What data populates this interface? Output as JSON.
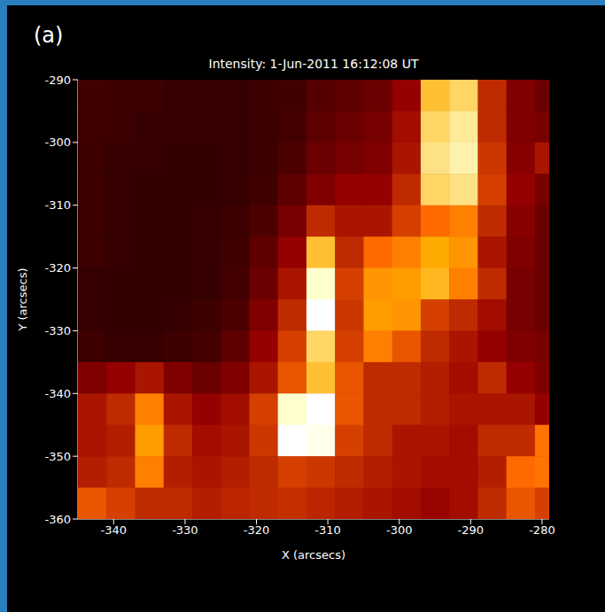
{
  "chart_data": {
    "type": "heatmap",
    "panel": "(a)",
    "title": "Intensity: 1-Jun-2011 16:12:08 UT",
    "x_label": "X (arcsecs)",
    "y_label": "Y (arcsecs)",
    "xlim": [
      -345,
      -279
    ],
    "ylim": [
      -360,
      -290
    ],
    "xticks": [
      -340,
      -330,
      -320,
      -310,
      -300,
      -290,
      -280
    ],
    "yticks": [
      -360,
      -350,
      -340,
      -330,
      -320,
      -310,
      -300,
      -290
    ],
    "x": [
      -343,
      -339,
      -335,
      -331,
      -327,
      -323,
      -319,
      -315,
      -311,
      -307,
      -303,
      -299,
      -295,
      -291,
      -287,
      -283,
      -279
    ],
    "y": [
      -292.5,
      -297.5,
      -302.5,
      -307.5,
      -312.5,
      -317.5,
      -322.5,
      -327.5,
      -332.5,
      -337.5,
      -342.5,
      -347.5,
      -352.5,
      -357.5
    ],
    "cell_width": 4,
    "cell_height": 5,
    "zlim": [
      0,
      100
    ],
    "cells": [
      [
        15,
        14,
        14,
        13,
        13,
        13,
        14,
        15,
        20,
        22,
        25,
        35,
        80,
        85,
        45,
        30,
        25
      ],
      [
        15,
        14,
        13,
        13,
        13,
        13,
        14,
        16,
        22,
        25,
        28,
        38,
        85,
        90,
        45,
        30,
        28
      ],
      [
        14,
        13,
        13,
        12,
        12,
        13,
        14,
        18,
        25,
        28,
        30,
        40,
        88,
        92,
        48,
        32,
        40
      ],
      [
        14,
        13,
        12,
        12,
        12,
        13,
        15,
        22,
        30,
        35,
        35,
        45,
        85,
        88,
        50,
        35,
        28
      ],
      [
        14,
        13,
        12,
        12,
        13,
        14,
        18,
        28,
        45,
        40,
        40,
        50,
        60,
        65,
        45,
        32,
        25
      ],
      [
        14,
        13,
        12,
        12,
        13,
        15,
        22,
        35,
        80,
        45,
        60,
        65,
        75,
        70,
        40,
        30,
        25
      ],
      [
        13,
        12,
        12,
        12,
        13,
        16,
        25,
        40,
        95,
        50,
        70,
        72,
        78,
        65,
        45,
        28,
        25
      ],
      [
        13,
        12,
        12,
        13,
        14,
        18,
        30,
        45,
        100,
        48,
        72,
        70,
        50,
        45,
        38,
        28,
        25
      ],
      [
        14,
        13,
        13,
        14,
        16,
        22,
        35,
        50,
        85,
        50,
        65,
        55,
        45,
        40,
        35,
        30,
        28
      ],
      [
        30,
        35,
        40,
        30,
        25,
        30,
        40,
        55,
        80,
        55,
        45,
        45,
        42,
        38,
        45,
        35,
        30
      ],
      [
        40,
        45,
        65,
        40,
        35,
        38,
        50,
        95,
        100,
        55,
        45,
        45,
        42,
        40,
        40,
        40,
        35
      ],
      [
        40,
        42,
        72,
        45,
        38,
        40,
        48,
        100,
        98,
        50,
        45,
        40,
        40,
        38,
        45,
        45,
        62
      ],
      [
        42,
        45,
        65,
        42,
        40,
        42,
        45,
        50,
        48,
        45,
        42,
        40,
        38,
        38,
        42,
        60,
        62
      ],
      [
        55,
        50,
        45,
        45,
        42,
        44,
        45,
        46,
        44,
        42,
        40,
        38,
        36,
        38,
        45,
        55,
        50
      ]
    ]
  }
}
